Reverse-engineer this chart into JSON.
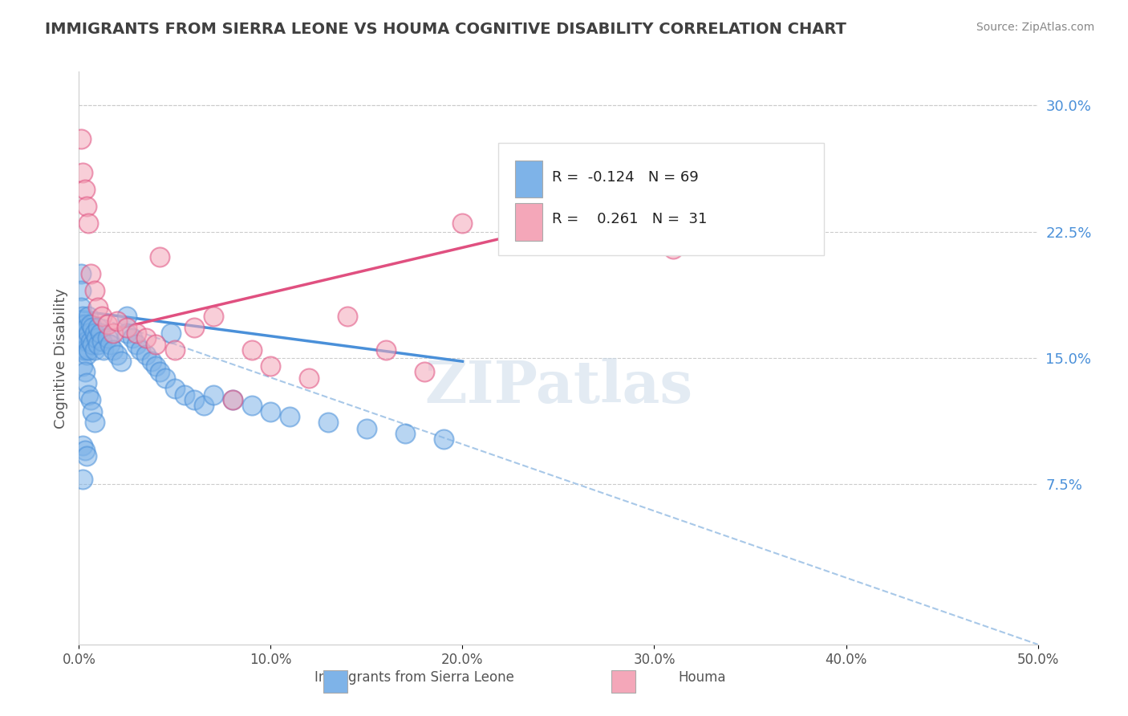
{
  "title": "IMMIGRANTS FROM SIERRA LEONE VS HOUMA COGNITIVE DISABILITY CORRELATION CHART",
  "source": "Source: ZipAtlas.com",
  "xlabel_bottom": "",
  "ylabel": "Cognitive Disability",
  "legend_blue_label": "Immigrants from Sierra Leone",
  "legend_pink_label": "Houma",
  "legend_R_blue": "R = -0.124",
  "legend_N_blue": "N = 69",
  "legend_R_pink": "R =  0.261",
  "legend_N_pink": "N =  31",
  "x_ticks": [
    0.0,
    0.1,
    0.2,
    0.3,
    0.4,
    0.5
  ],
  "x_tick_labels": [
    "0.0%",
    "10.0%",
    "20.0%",
    "30.0%",
    "40.0%",
    "50.0%"
  ],
  "x_tick_labels_bottom": [
    "0.0%",
    "10.0%",
    "20.0%",
    "30.0%",
    "40.0%",
    "50.0%"
  ],
  "y_ticks_right": [
    0.075,
    0.15,
    0.225,
    0.3
  ],
  "y_tick_labels_right": [
    "7.5%",
    "15.0%",
    "22.5%",
    "30.0%"
  ],
  "xlim": [
    0.0,
    0.5
  ],
  "ylim": [
    -0.02,
    0.32
  ],
  "blue_color": "#7EB3E8",
  "pink_color": "#F4A7B9",
  "blue_line_color": "#4A90D9",
  "pink_line_color": "#E05080",
  "dashed_line_color": "#A8C8E8",
  "background_color": "#FFFFFF",
  "title_color": "#404040",
  "source_color": "#888888",
  "blue_scatter_x": [
    0.001,
    0.001,
    0.001,
    0.001,
    0.001,
    0.002,
    0.002,
    0.002,
    0.002,
    0.003,
    0.003,
    0.003,
    0.004,
    0.004,
    0.004,
    0.005,
    0.005,
    0.005,
    0.006,
    0.006,
    0.007,
    0.007,
    0.008,
    0.008,
    0.009,
    0.01,
    0.01,
    0.011,
    0.012,
    0.013,
    0.015,
    0.016,
    0.018,
    0.02,
    0.022,
    0.025,
    0.025,
    0.028,
    0.03,
    0.032,
    0.035,
    0.038,
    0.04,
    0.042,
    0.045,
    0.048,
    0.05,
    0.055,
    0.06,
    0.065,
    0.07,
    0.08,
    0.09,
    0.1,
    0.11,
    0.13,
    0.15,
    0.17,
    0.19,
    0.003,
    0.004,
    0.005,
    0.006,
    0.007,
    0.008,
    0.002,
    0.003,
    0.004,
    0.002
  ],
  "blue_scatter_y": [
    0.2,
    0.19,
    0.18,
    0.17,
    0.16,
    0.175,
    0.165,
    0.155,
    0.145,
    0.17,
    0.162,
    0.155,
    0.168,
    0.16,
    0.152,
    0.175,
    0.165,
    0.155,
    0.17,
    0.16,
    0.168,
    0.158,
    0.165,
    0.155,
    0.162,
    0.168,
    0.158,
    0.165,
    0.16,
    0.155,
    0.162,
    0.158,
    0.155,
    0.152,
    0.148,
    0.175,
    0.165,
    0.162,
    0.158,
    0.155,
    0.152,
    0.148,
    0.145,
    0.142,
    0.138,
    0.165,
    0.132,
    0.128,
    0.125,
    0.122,
    0.128,
    0.125,
    0.122,
    0.118,
    0.115,
    0.112,
    0.108,
    0.105,
    0.102,
    0.142,
    0.135,
    0.128,
    0.125,
    0.118,
    0.112,
    0.098,
    0.095,
    0.092,
    0.078
  ],
  "pink_scatter_x": [
    0.001,
    0.002,
    0.003,
    0.004,
    0.005,
    0.006,
    0.008,
    0.01,
    0.012,
    0.015,
    0.018,
    0.02,
    0.025,
    0.03,
    0.035,
    0.04,
    0.05,
    0.06,
    0.07,
    0.08,
    0.09,
    0.1,
    0.12,
    0.14,
    0.16,
    0.18,
    0.2,
    0.25,
    0.3,
    0.042,
    0.31
  ],
  "pink_scatter_y": [
    0.28,
    0.26,
    0.25,
    0.24,
    0.23,
    0.2,
    0.19,
    0.18,
    0.175,
    0.17,
    0.165,
    0.172,
    0.168,
    0.165,
    0.162,
    0.158,
    0.155,
    0.168,
    0.175,
    0.125,
    0.155,
    0.145,
    0.138,
    0.175,
    0.155,
    0.142,
    0.23,
    0.225,
    0.22,
    0.21,
    0.215
  ],
  "blue_trend_x": [
    0.0,
    0.2
  ],
  "blue_trend_y": [
    0.178,
    0.148
  ],
  "pink_trend_x": [
    0.0,
    0.31
  ],
  "pink_trend_y": [
    0.162,
    0.245
  ],
  "dashed_trend_x": [
    0.0,
    0.5
  ],
  "dashed_trend_y": [
    0.178,
    -0.02
  ],
  "watermark": "ZIPatlas",
  "watermark_color": "#C8D8E8"
}
